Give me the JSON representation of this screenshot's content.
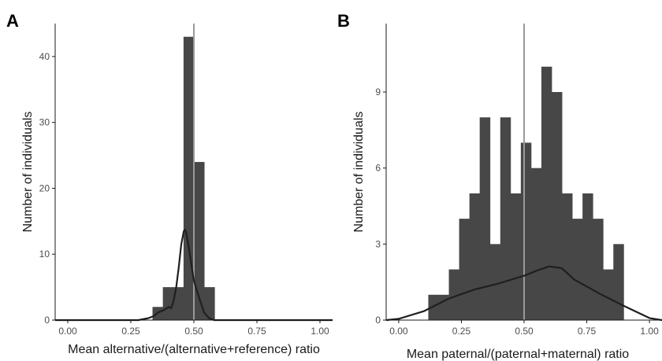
{
  "colors": {
    "bar": "#474747",
    "refline": "#9a9a9a",
    "density": "#1f1f1f",
    "axis": "#1a1a1a",
    "tick": "#4d4d4d"
  },
  "chart_data": [
    {
      "type": "bar",
      "panel": "A",
      "xlabel": "Mean alternative/(alternative+reference) ratio",
      "ylabel": "Number of individuals",
      "xlim": [
        -0.05,
        1.05
      ],
      "ylim": [
        0,
        45
      ],
      "xticks": [
        "0.00",
        "0.25",
        "0.50",
        "0.75",
        "1.00"
      ],
      "yticks": [
        "0",
        "10",
        "20",
        "30",
        "40"
      ],
      "bin_width": 0.041,
      "bin_left": [
        0.336,
        0.377,
        0.418,
        0.459,
        0.5,
        0.541
      ],
      "values": [
        2,
        5,
        5,
        43,
        24,
        5
      ],
      "reference_line": 0.5,
      "density_curve": {
        "x": [
          -0.05,
          0.28,
          0.32,
          0.34,
          0.36,
          0.38,
          0.4,
          0.41,
          0.42,
          0.43,
          0.44,
          0.45,
          0.46,
          0.465,
          0.47,
          0.48,
          0.49,
          0.5,
          0.52,
          0.54,
          0.56,
          0.58,
          1.05
        ],
        "y": [
          0,
          0,
          0.3,
          0.6,
          1.2,
          1.5,
          2.0,
          1.8,
          3.0,
          5.0,
          8.0,
          11.5,
          13.5,
          13.7,
          13.2,
          11.0,
          8.5,
          6.0,
          3.5,
          1.2,
          0.3,
          0,
          0
        ]
      }
    },
    {
      "type": "bar",
      "panel": "B",
      "xlabel": "Mean paternal/(paternal+maternal) ratio",
      "ylabel": "Number of individuals",
      "xlim": [
        -0.05,
        1.05
      ],
      "ylim": [
        0,
        11.7
      ],
      "xticks": [
        "0.00",
        "0.25",
        "0.50",
        "0.75",
        "1.00"
      ],
      "yticks": [
        "0",
        "3",
        "6",
        "9"
      ],
      "bin_width": 0.041,
      "bin_left": [
        0.118,
        0.159,
        0.2,
        0.241,
        0.282,
        0.323,
        0.364,
        0.405,
        0.446,
        0.487,
        0.528,
        0.569,
        0.61,
        0.651,
        0.692,
        0.733,
        0.774,
        0.815,
        0.856,
        0.897
      ],
      "values": [
        1,
        1,
        2,
        4,
        5,
        8,
        3,
        8,
        5,
        7,
        6,
        10,
        9,
        5,
        4,
        5,
        4,
        2,
        3,
        0
      ],
      "reference_line": 0.5,
      "density_curve": {
        "x": [
          -0.05,
          0.0,
          0.1,
          0.2,
          0.3,
          0.4,
          0.5,
          0.55,
          0.6,
          0.65,
          0.7,
          0.8,
          0.9,
          1.0,
          1.05
        ],
        "y": [
          0,
          0.05,
          0.35,
          0.85,
          1.2,
          1.45,
          1.75,
          1.95,
          2.12,
          2.05,
          1.6,
          1.05,
          0.55,
          0.08,
          0
        ]
      }
    }
  ],
  "panels": [
    {
      "tag": "A"
    },
    {
      "tag": "B"
    }
  ]
}
